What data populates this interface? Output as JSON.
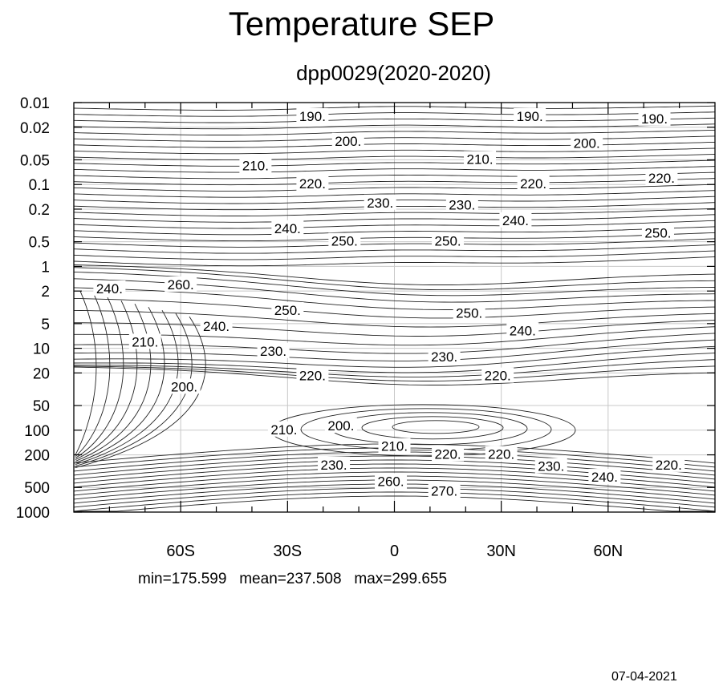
{
  "chart_data": {
    "type": "contour",
    "title": "Temperature SEP",
    "subtitle": "dpp0029(2020-2020)",
    "x_axis": {
      "range": [
        -90,
        90
      ],
      "ticks": [
        -60,
        -30,
        0,
        30,
        60
      ],
      "tick_labels": [
        "60S",
        "30S",
        "0",
        "30N",
        "60N"
      ]
    },
    "y_axis": {
      "scale": "log",
      "reversed": true,
      "range": [
        0.01,
        1000
      ],
      "ticks": [
        0.01,
        0.02,
        0.05,
        0.1,
        0.2,
        0.5,
        1,
        2,
        5,
        10,
        20,
        50,
        100,
        200,
        500,
        1000
      ],
      "tick_labels": [
        "0.01",
        "0.02",
        "0.05",
        "0.1",
        "0.2",
        "0.5",
        "1",
        "2",
        "5",
        "10",
        "20",
        "50",
        "100",
        "200",
        "500",
        "1000"
      ]
    },
    "grid": true,
    "contour_labels": [
      {
        "text": "190.",
        "lat": -23,
        "p": 0.015
      },
      {
        "text": "190.",
        "lat": 38,
        "p": 0.015
      },
      {
        "text": "190.",
        "lat": 73,
        "p": 0.016
      },
      {
        "text": "200.",
        "lat": -13,
        "p": 0.03
      },
      {
        "text": "200.",
        "lat": 54,
        "p": 0.032
      },
      {
        "text": "210.",
        "lat": -39,
        "p": 0.06
      },
      {
        "text": "210.",
        "lat": 24,
        "p": 0.05
      },
      {
        "text": "220.",
        "lat": -23,
        "p": 0.1
      },
      {
        "text": "220.",
        "lat": 39,
        "p": 0.1
      },
      {
        "text": "220.",
        "lat": 75,
        "p": 0.085
      },
      {
        "text": "230.",
        "lat": -4,
        "p": 0.17
      },
      {
        "text": "230.",
        "lat": 19,
        "p": 0.18
      },
      {
        "text": "240.",
        "lat": -30,
        "p": 0.35
      },
      {
        "text": "240.",
        "lat": 34,
        "p": 0.28
      },
      {
        "text": "250.",
        "lat": -14,
        "p": 0.5
      },
      {
        "text": "250.",
        "lat": 15,
        "p": 0.5
      },
      {
        "text": "250.",
        "lat": 74,
        "p": 0.4
      },
      {
        "text": "240.",
        "lat": -80,
        "p": 1.9
      },
      {
        "text": "260.",
        "lat": -60,
        "p": 1.7
      },
      {
        "text": "250.",
        "lat": -30,
        "p": 3.5
      },
      {
        "text": "250.",
        "lat": 21,
        "p": 3.8
      },
      {
        "text": "240.",
        "lat": -50,
        "p": 5.5
      },
      {
        "text": "240.",
        "lat": 36,
        "p": 6.2
      },
      {
        "text": "210.",
        "lat": -70,
        "p": 8.5
      },
      {
        "text": "230.",
        "lat": -34,
        "p": 11
      },
      {
        "text": "230.",
        "lat": 14,
        "p": 13
      },
      {
        "text": "220.",
        "lat": -23,
        "p": 22
      },
      {
        "text": "220.",
        "lat": 29,
        "p": 22
      },
      {
        "text": "200.",
        "lat": -59,
        "p": 30
      },
      {
        "text": "210.",
        "lat": -31,
        "p": 100
      },
      {
        "text": "200.",
        "lat": -15,
        "p": 90
      },
      {
        "text": "210.",
        "lat": 0,
        "p": 160
      },
      {
        "text": "220.",
        "lat": 15,
        "p": 200
      },
      {
        "text": "220.",
        "lat": 30,
        "p": 200
      },
      {
        "text": "230.",
        "lat": -17,
        "p": 270
      },
      {
        "text": "230.",
        "lat": 44,
        "p": 280
      },
      {
        "text": "240.",
        "lat": 59,
        "p": 380
      },
      {
        "text": "220.",
        "lat": 77,
        "p": 270
      },
      {
        "text": "260.",
        "lat": -1,
        "p": 430
      },
      {
        "text": "270.",
        "lat": 14,
        "p": 560
      }
    ],
    "stats": {
      "min": "175.599",
      "mean": "237.508",
      "max": "299.655"
    },
    "stats_text": "min=175.599   mean=237.508   max=299.655"
  },
  "footer": {
    "date": "07-04-2021"
  }
}
